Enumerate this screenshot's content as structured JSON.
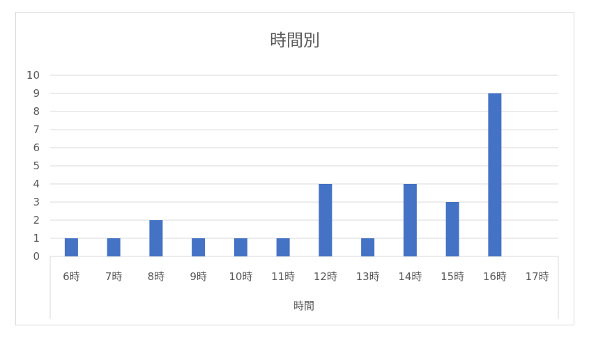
{
  "chart_data": {
    "type": "bar",
    "title": "時間別",
    "xlabel": "時間",
    "ylabel": "",
    "categories": [
      "6時",
      "7時",
      "8時",
      "9時",
      "10時",
      "11時",
      "12時",
      "13時",
      "14時",
      "15時",
      "16時",
      "17時"
    ],
    "values": [
      1,
      1,
      2,
      1,
      1,
      1,
      4,
      1,
      4,
      3,
      9,
      0
    ],
    "ylim": [
      0,
      10
    ],
    "yticks": [
      "0",
      "1",
      "2",
      "3",
      "4",
      "5",
      "6",
      "7",
      "8",
      "9",
      "10"
    ],
    "grid": true,
    "legend": "none",
    "bar_color": "#4472c4",
    "grid_color": "#d9d9d9",
    "text_color": "#595959"
  }
}
